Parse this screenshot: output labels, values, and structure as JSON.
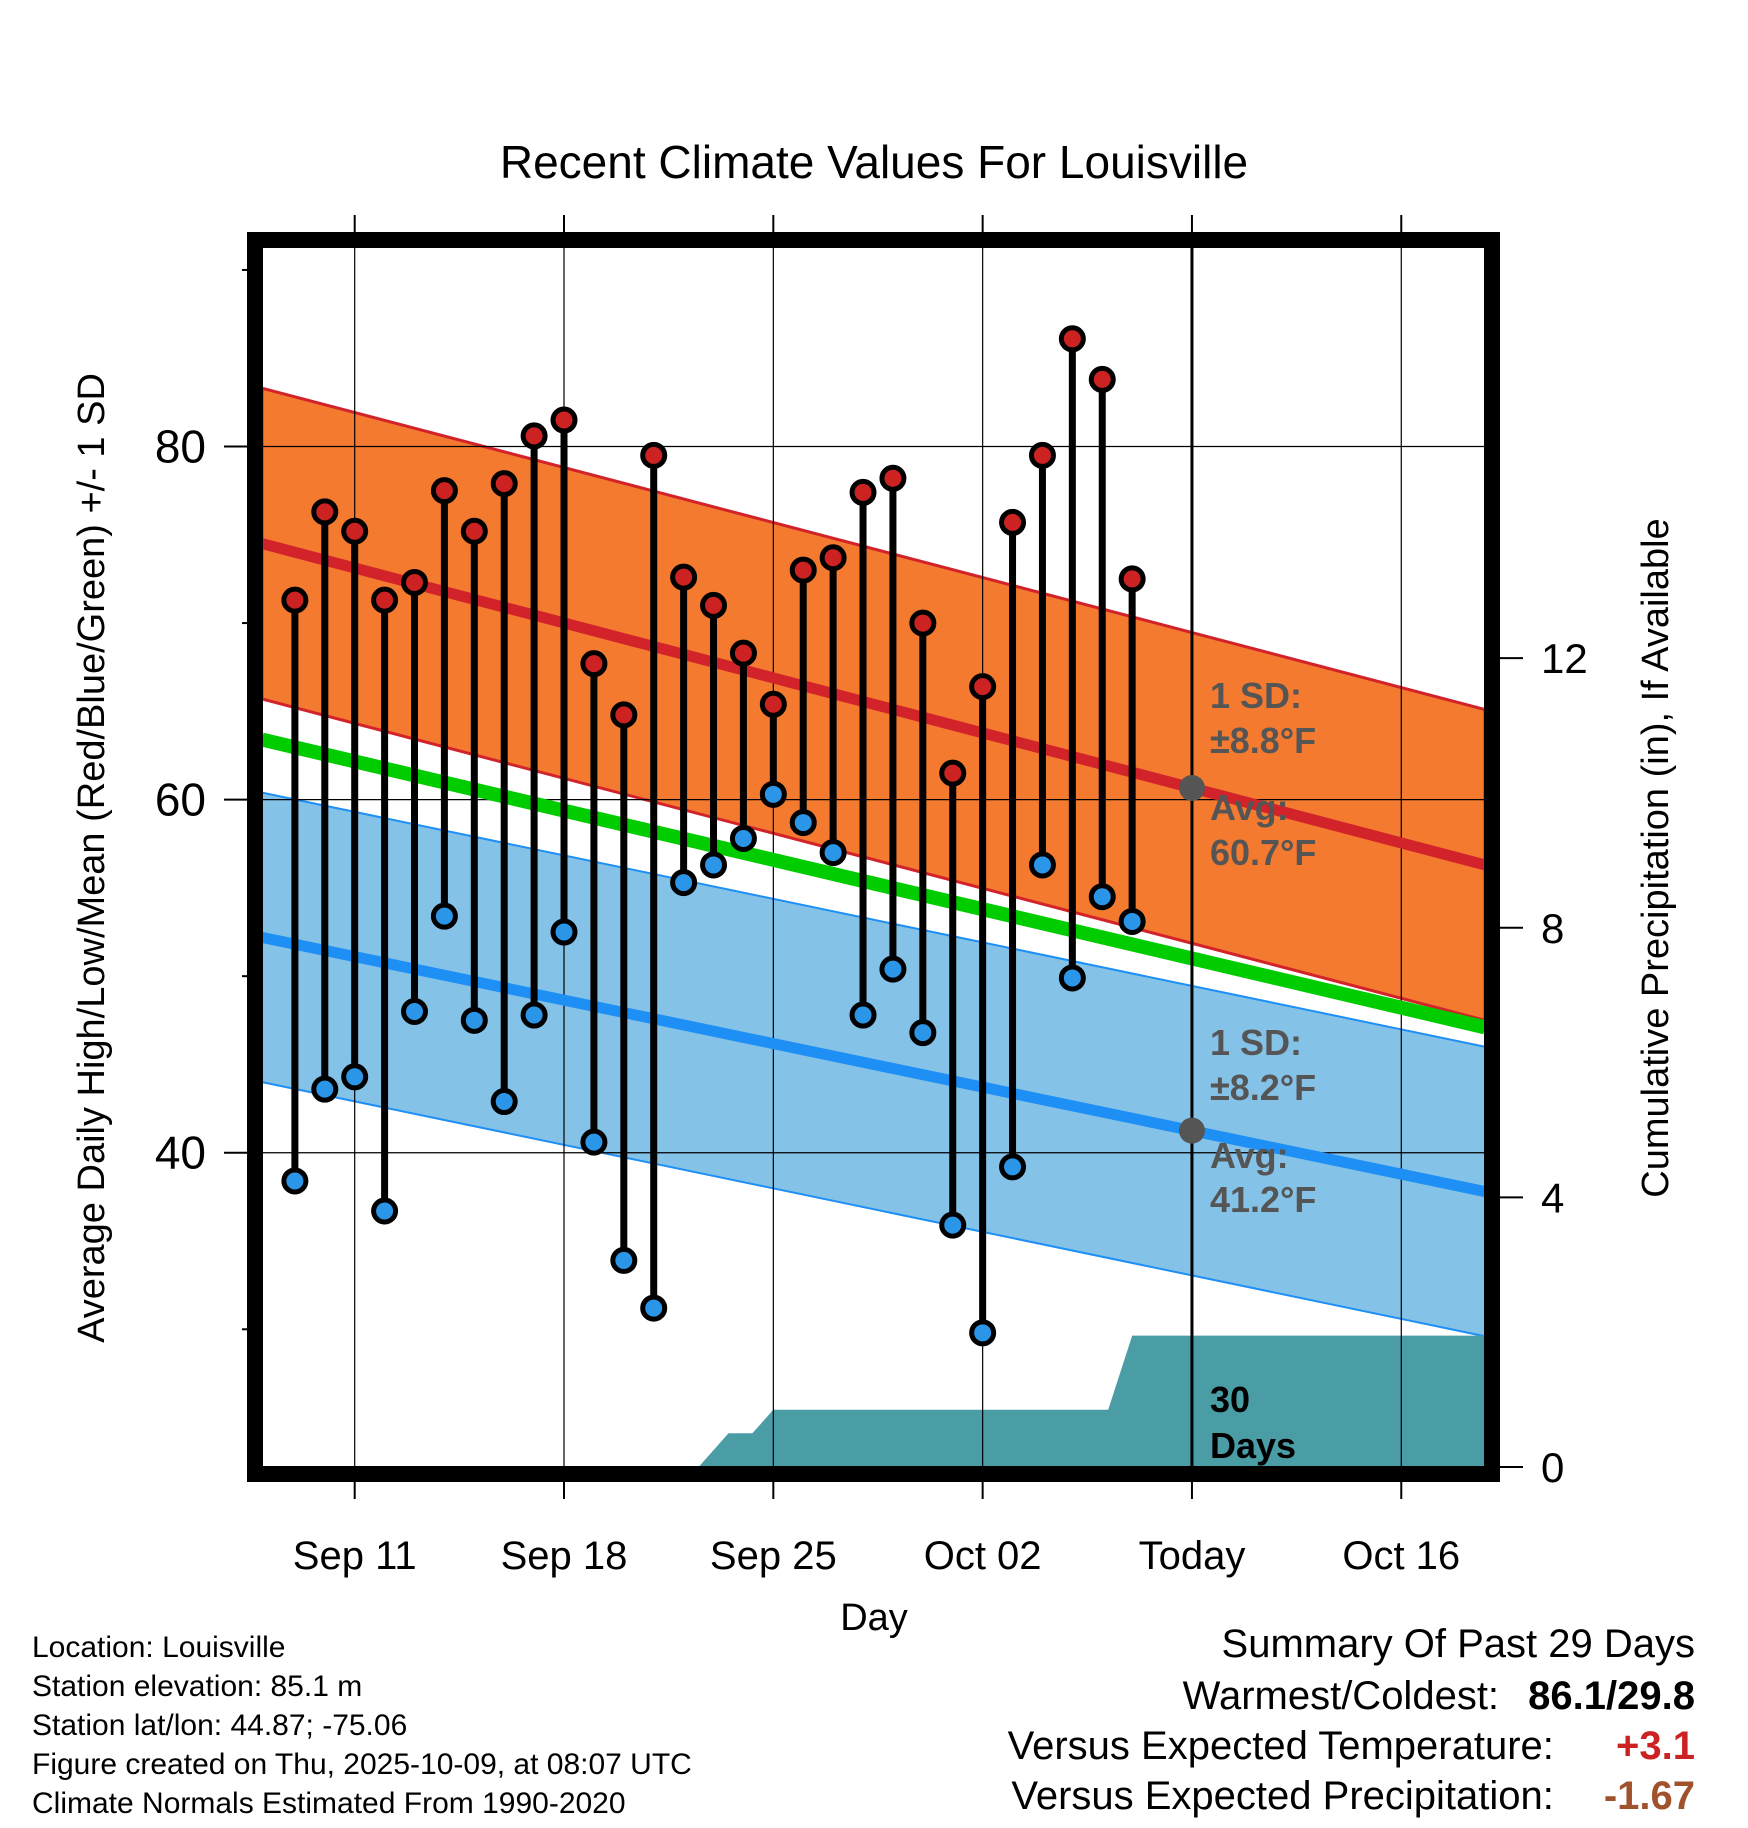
{
  "chart_data": {
    "type": "line",
    "title": "Recent Climate Values For Louisville",
    "xlabel": "Day",
    "ylabel": "Average Daily High/Low/Mean (Red/Blue/Green) +/- 1 SD",
    "y2label": "Cumulative Precipitation (in), If Available",
    "ylim": [
      22.2,
      91.3
    ],
    "y2lim": [
      0,
      18.1
    ],
    "xlim": [
      -3.1,
      37.8
    ],
    "x_ticks": [
      {
        "day": 0,
        "label": "Sep 11"
      },
      {
        "day": 7,
        "label": "Sep 18"
      },
      {
        "day": 14,
        "label": "Sep 25"
      },
      {
        "day": 21,
        "label": "Oct 02"
      },
      {
        "day": 28,
        "label": "Today"
      },
      {
        "day": 35,
        "label": "Oct 16"
      }
    ],
    "y_ticks": [
      40,
      60,
      80
    ],
    "y2_ticks": [
      0,
      4,
      8,
      12
    ],
    "today_day": 28,
    "days": [
      -2,
      -1,
      0,
      1,
      2,
      3,
      4,
      5,
      6,
      7,
      8,
      9,
      10,
      11,
      12,
      13,
      14,
      15,
      16,
      17,
      18,
      19,
      20,
      21,
      22,
      23,
      24,
      25,
      26
    ],
    "highs": [
      71.3,
      76.3,
      75.2,
      71.3,
      72.3,
      77.5,
      75.2,
      77.9,
      80.6,
      81.5,
      67.7,
      64.8,
      79.5,
      72.6,
      71.0,
      68.3,
      65.4,
      73.0,
      73.7,
      77.4,
      78.2,
      70.0,
      61.5,
      66.4,
      75.7,
      79.5,
      86.1,
      83.8,
      72.5
    ],
    "lows": [
      38.4,
      43.6,
      44.3,
      36.7,
      48.0,
      53.4,
      47.5,
      42.9,
      47.8,
      52.5,
      40.6,
      33.9,
      31.2,
      55.3,
      56.3,
      57.8,
      60.3,
      58.7,
      57.0,
      47.8,
      50.4,
      46.8,
      35.9,
      29.8,
      39.2,
      56.3,
      49.9,
      54.5,
      53.1
    ],
    "normal_high": {
      "start": 74.5,
      "end": 56.3,
      "start_day": -3.1,
      "end_day": 37.8
    },
    "normal_low": {
      "start": 52.2,
      "end": 37.8,
      "start_day": -3.1,
      "end_day": 37.8
    },
    "normal_mean": {
      "start": 63.4,
      "end": 47.1,
      "start_day": -3.1,
      "end_day": 37.8
    },
    "high_sd": 8.8,
    "low_sd": 8.2,
    "precip_cumulative": [
      [
        11.5,
        0
      ],
      [
        12.5,
        0.5
      ],
      [
        13.3,
        0.5
      ],
      [
        14,
        0.85
      ],
      [
        18,
        0.85
      ],
      [
        24,
        0.85
      ],
      [
        25.2,
        0.85
      ],
      [
        26,
        1.95
      ],
      [
        37.8,
        1.95
      ]
    ],
    "annotations": {
      "high_sd_label": "1 SD:",
      "high_sd_value": "±8.8°F",
      "high_avg_label": "Avg:",
      "high_avg_value": "60.7°F",
      "low_sd_label": "1 SD:",
      "low_sd_value": "±8.2°F",
      "low_avg_label": "Avg:",
      "low_avg_value": "41.2°F",
      "precip_days": "30",
      "precip_days_unit": "Days"
    }
  },
  "colors": {
    "high_band": "#f47a30",
    "low_band": "#85c2e7",
    "high_line": "#d2232a",
    "low_line": "#1e8ff5",
    "mean_line": "#00cc00",
    "precip": "#4a9ca5",
    "high_dot": "#cc2222",
    "low_dot": "#2b95e8",
    "annotation": "#555555",
    "warm": "#cc2222",
    "precip_anomaly": "#a0522d"
  },
  "info": {
    "location": "Location: Louisville",
    "elevation": "Station elevation: 85.1 m",
    "latlon": "Station lat/lon: 44.87; -75.06",
    "created": "Figure created on Thu, 2025-10-09, at 08:07 UTC",
    "normals": "Climate Normals Estimated From 1990-2020"
  },
  "summary": {
    "title": "Summary Of Past 29 Days",
    "warm_cold_label": "Warmest/Coldest:",
    "warm_cold_value": "86.1/29.8",
    "temp_label": "Versus Expected Temperature:",
    "temp_value": "+3.1",
    "precip_label": "Versus Expected Precipitation:",
    "precip_value": "-1.67"
  }
}
